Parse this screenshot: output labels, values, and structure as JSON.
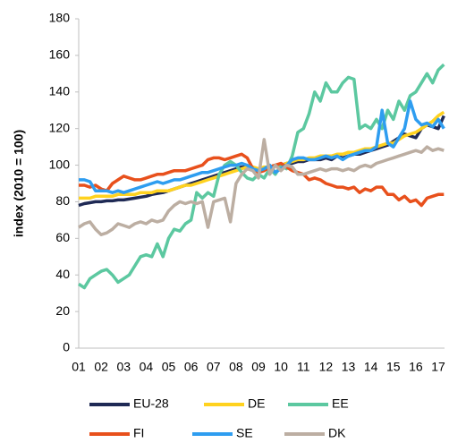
{
  "chart_data": {
    "type": "line",
    "y_label": "index (2010 = 100)",
    "categories": [
      "01",
      null,
      null,
      null,
      "02",
      null,
      null,
      null,
      "03",
      null,
      null,
      null,
      "04",
      null,
      null,
      null,
      "05",
      null,
      null,
      null,
      "06",
      null,
      null,
      null,
      "07",
      null,
      null,
      null,
      "08",
      null,
      null,
      null,
      "09",
      null,
      null,
      null,
      "10",
      null,
      null,
      null,
      "11",
      null,
      null,
      null,
      "12",
      null,
      null,
      null,
      "13",
      null,
      null,
      null,
      "14",
      null,
      null,
      null,
      "15",
      null,
      null,
      null,
      "16",
      null,
      null,
      null,
      "17",
      null
    ],
    "ylim": [
      0,
      180
    ],
    "yticks": [
      0,
      20,
      40,
      60,
      80,
      100,
      120,
      140,
      160,
      180
    ],
    "grid": false,
    "legend": "bottom",
    "series": [
      {
        "name": "EU-28",
        "color": "#1f2a55",
        "values": [
          78,
          79,
          79.5,
          80,
          80,
          80.5,
          80.5,
          81,
          81,
          81.5,
          82,
          82.5,
          83,
          84,
          84.5,
          85,
          86,
          87,
          88,
          89,
          90,
          91,
          92,
          93,
          94,
          95,
          96,
          97,
          98,
          99,
          99,
          98,
          97,
          98,
          99,
          100,
          100,
          101,
          101,
          102,
          102,
          103,
          103,
          103,
          104,
          103,
          105,
          104,
          105,
          106,
          106,
          107,
          108,
          109,
          110,
          111,
          113,
          115,
          117,
          116,
          115,
          120,
          122,
          121,
          120,
          127
        ]
      },
      {
        "name": "DE",
        "color": "#ffd21f",
        "values": [
          82,
          82,
          82,
          83,
          83,
          83,
          83,
          84,
          84,
          84,
          84,
          85,
          85,
          85,
          86,
          86,
          86,
          87,
          88,
          89,
          89,
          90,
          91,
          92,
          93,
          94,
          95,
          96,
          97,
          98,
          99,
          99,
          98,
          99,
          99,
          100,
          100,
          101,
          102,
          103,
          103,
          104,
          104,
          105,
          105,
          105,
          106,
          106,
          107,
          107,
          108,
          109,
          109,
          110,
          111,
          112,
          112,
          114,
          116,
          117,
          118,
          120,
          122,
          124,
          127,
          129
        ]
      },
      {
        "name": "EE",
        "color": "#5cc8a0",
        "values": [
          35,
          33,
          38,
          40,
          42,
          43,
          40,
          36,
          38,
          40,
          45,
          50,
          51,
          50,
          57,
          50,
          60,
          65,
          64,
          68,
          70,
          85,
          82,
          85,
          83,
          95,
          100,
          102,
          100,
          96,
          93,
          92,
          95,
          93,
          98,
          95,
          100,
          98,
          105,
          118,
          120,
          128,
          140,
          135,
          145,
          140,
          140,
          145,
          148,
          147,
          120,
          122,
          120,
          125,
          120,
          130,
          125,
          135,
          130,
          138,
          140,
          145,
          150,
          145,
          152,
          155
        ]
      },
      {
        "name": "FI",
        "color": "#e8501c",
        "values": [
          89,
          89,
          88,
          89,
          87,
          86,
          90,
          92,
          94,
          93,
          92,
          92,
          93,
          94,
          95,
          95,
          96,
          97,
          97,
          97,
          98,
          99,
          100,
          103,
          104,
          104,
          103,
          104,
          105,
          106,
          104,
          98,
          96,
          97,
          99,
          100,
          101,
          99,
          97,
          96,
          95,
          92,
          93,
          92,
          90,
          89,
          88,
          88,
          87,
          88,
          85,
          87,
          86,
          88,
          88,
          84,
          84,
          81,
          83,
          80,
          81,
          78,
          82,
          83,
          84,
          84
        ]
      },
      {
        "name": "SE",
        "color": "#2e9df0",
        "values": [
          92,
          92,
          91,
          86,
          86,
          86,
          85,
          86,
          85,
          86,
          87,
          88,
          89,
          90,
          91,
          90,
          91,
          92,
          92,
          93,
          94,
          95,
          96,
          96,
          97,
          98,
          99,
          100,
          100,
          101,
          100,
          98,
          97,
          98,
          100,
          96,
          98,
          100,
          103,
          104,
          104,
          103,
          103,
          104,
          105,
          104,
          105,
          103,
          105,
          106,
          107,
          108,
          108,
          110,
          130,
          112,
          110,
          115,
          120,
          135,
          125,
          122,
          123,
          121,
          125,
          120
        ]
      },
      {
        "name": "DK",
        "color": "#bcaea2",
        "values": [
          66,
          68,
          69,
          65,
          62,
          63,
          65,
          68,
          67,
          66,
          68,
          69,
          68,
          70,
          69,
          70,
          75,
          78,
          80,
          79,
          80,
          79,
          80,
          66,
          80,
          81,
          82,
          69,
          90,
          95,
          98,
          97,
          93,
          114,
          95,
          100,
          97,
          100,
          99,
          95,
          95,
          96,
          97,
          98,
          97,
          98,
          98,
          97,
          98,
          97,
          99,
          100,
          99,
          101,
          102,
          103,
          104,
          105,
          106,
          107,
          108,
          107,
          110,
          108,
          109,
          108
        ]
      }
    ]
  }
}
